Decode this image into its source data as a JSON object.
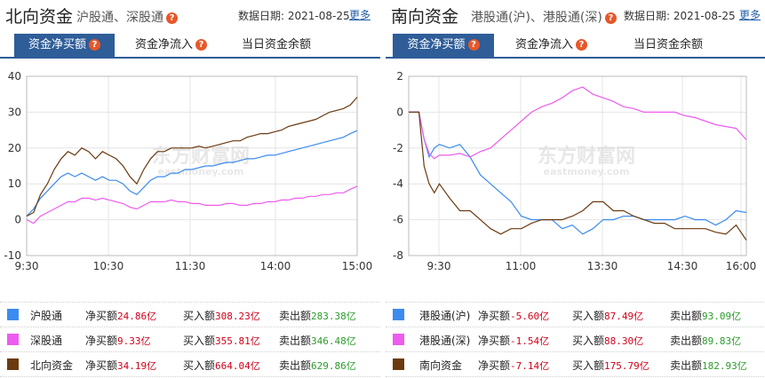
{
  "north": {
    "title": "北向资金",
    "subtitle": "沪股通、深股通",
    "date_label": "数据日期:",
    "date": "2021-08-25",
    "more": "更多",
    "tabs": [
      {
        "label": "资金净买额",
        "active": true,
        "help": true
      },
      {
        "label": "资金净流入",
        "active": false,
        "help": true
      },
      {
        "label": "当日资金余额",
        "active": false,
        "help": false
      }
    ],
    "watermark": "东方财富网",
    "watermark_sub": "eastmoney.com",
    "legend": [
      {
        "name": "沪股通",
        "color": "#3b8bf0",
        "net_label": "净买额",
        "net": "24.86亿",
        "buy_label": "买入额",
        "buy": "308.23亿",
        "sell_label": "卖出额",
        "sell": "283.38亿"
      },
      {
        "name": "深股通",
        "color": "#ee5bee",
        "net_label": "净买额",
        "net": "9.33亿",
        "buy_label": "买入额",
        "buy": "355.81亿",
        "sell_label": "卖出额",
        "sell": "346.48亿"
      },
      {
        "name": "北向资金",
        "color": "#6b3a10",
        "net_label": "净买额",
        "net": "34.19亿",
        "buy_label": "买入额",
        "buy": "664.04亿",
        "sell_label": "卖出额",
        "sell": "629.86亿"
      }
    ]
  },
  "south": {
    "title": "南向资金",
    "subtitle": "港股通(沪)、港股通(深)",
    "date_label": "数据日期:",
    "date": "2021-08-25",
    "more": "更多",
    "tabs": [
      {
        "label": "资金净买额",
        "active": true,
        "help": true
      },
      {
        "label": "资金净流入",
        "active": false,
        "help": true
      },
      {
        "label": "当日资金余额",
        "active": false,
        "help": false
      }
    ],
    "watermark": "东方财富网",
    "watermark_sub": "eastmoney.com",
    "legend": [
      {
        "name": "港股通(沪)",
        "color": "#3b8bf0",
        "net_label": "净买额",
        "net": "-5.60亿",
        "buy_label": "买入额",
        "buy": "87.49亿",
        "sell_label": "卖出额",
        "sell": "93.09亿"
      },
      {
        "name": "港股通(深)",
        "color": "#ee5bee",
        "net_label": "净买额",
        "net": "-1.54亿",
        "buy_label": "买入额",
        "buy": "88.30亿",
        "sell_label": "卖出额",
        "sell": "89.83亿"
      },
      {
        "name": "南向资金",
        "color": "#6b3a10",
        "net_label": "净买额",
        "net": "-7.14亿",
        "buy_label": "买入额",
        "buy": "175.79亿",
        "sell_label": "卖出额",
        "sell": "182.93亿"
      }
    ]
  },
  "chart_data": [
    {
      "type": "line",
      "title": "",
      "xlabel": "",
      "ylabel": "",
      "x_ticks": [
        "9:30",
        "10:30",
        "11:30",
        "14:00",
        "15:00"
      ],
      "x_range": [
        0,
        240
      ],
      "ylim": [
        -10,
        40
      ],
      "y_ticks": [
        -10,
        0,
        10,
        20,
        30,
        40
      ],
      "grid": true,
      "series": [
        {
          "name": "沪股通",
          "color": "#3b8bf0",
          "x": [
            0,
            5,
            10,
            15,
            20,
            25,
            30,
            35,
            40,
            45,
            50,
            55,
            60,
            65,
            70,
            75,
            80,
            85,
            90,
            95,
            100,
            105,
            110,
            115,
            120,
            125,
            130,
            135,
            140,
            145,
            150,
            155,
            160,
            165,
            170,
            175,
            180,
            185,
            190,
            195,
            200,
            205,
            210,
            215,
            220,
            225,
            230,
            235,
            240
          ],
          "y": [
            1,
            3,
            6,
            8,
            10,
            12,
            13,
            12,
            13,
            12,
            11,
            12,
            11,
            11,
            10,
            8,
            7,
            9,
            11,
            12,
            12,
            13,
            13,
            14,
            14,
            14.5,
            15,
            15,
            15.5,
            16,
            16,
            16.5,
            17,
            17,
            17.5,
            18,
            18,
            18.5,
            19,
            19.5,
            20,
            20.5,
            21,
            21.5,
            22,
            22.5,
            23,
            24,
            24.86
          ]
        },
        {
          "name": "深股通",
          "color": "#ee5bee",
          "x": [
            0,
            5,
            10,
            15,
            20,
            25,
            30,
            35,
            40,
            45,
            50,
            55,
            60,
            65,
            70,
            75,
            80,
            85,
            90,
            95,
            100,
            105,
            110,
            115,
            120,
            125,
            130,
            135,
            140,
            145,
            150,
            155,
            160,
            165,
            170,
            175,
            180,
            185,
            190,
            195,
            200,
            205,
            210,
            215,
            220,
            225,
            230,
            235,
            240
          ],
          "y": [
            0,
            -1,
            1,
            2,
            3,
            4,
            5,
            5,
            6,
            6,
            5.5,
            6,
            5.5,
            5,
            4.5,
            3.5,
            3,
            4,
            5,
            5,
            5,
            5.5,
            5,
            5,
            4.5,
            4.5,
            4,
            4,
            4,
            4.5,
            4.5,
            4,
            4,
            4.5,
            4.5,
            5,
            5,
            5.5,
            5.5,
            6,
            6,
            6.5,
            6.5,
            7,
            7,
            7.5,
            7.5,
            8.5,
            9.33
          ]
        },
        {
          "name": "北向资金",
          "color": "#6b3a10",
          "x": [
            0,
            5,
            10,
            15,
            20,
            25,
            30,
            35,
            40,
            45,
            50,
            55,
            60,
            65,
            70,
            75,
            80,
            85,
            90,
            95,
            100,
            105,
            110,
            115,
            120,
            125,
            130,
            135,
            140,
            145,
            150,
            155,
            160,
            165,
            170,
            175,
            180,
            185,
            190,
            195,
            200,
            205,
            210,
            215,
            220,
            225,
            230,
            235,
            240
          ],
          "y": [
            1,
            2,
            7,
            10,
            14,
            17,
            19,
            18,
            20,
            19,
            17,
            19,
            18,
            17,
            15,
            12,
            10,
            14,
            17,
            19,
            19,
            20,
            20,
            20,
            20,
            20.5,
            20,
            20.5,
            21,
            21.5,
            22,
            22,
            23,
            23.5,
            24,
            24,
            24.5,
            25,
            26,
            26.5,
            27,
            27.5,
            28,
            29,
            30,
            30.5,
            31,
            32,
            34.19
          ]
        }
      ]
    },
    {
      "type": "line",
      "title": "",
      "xlabel": "",
      "ylabel": "",
      "x_ticks": [
        "9:30",
        "11:00",
        "13:30",
        "14:30",
        "16:00"
      ],
      "x_range": [
        0,
        330
      ],
      "ylim": [
        -8,
        2
      ],
      "y_ticks": [
        -8,
        -6,
        -4,
        -2,
        0,
        2
      ],
      "grid": true,
      "series": [
        {
          "name": "港股通(沪)",
          "color": "#3b8bf0",
          "x": [
            0,
            10,
            15,
            20,
            25,
            30,
            40,
            50,
            60,
            70,
            80,
            90,
            100,
            110,
            120,
            130,
            140,
            150,
            160,
            170,
            180,
            190,
            200,
            210,
            220,
            230,
            240,
            250,
            260,
            270,
            280,
            290,
            300,
            310,
            320,
            330
          ],
          "y": [
            0,
            0,
            -1.5,
            -2.5,
            -2,
            -1.8,
            -2,
            -1.8,
            -2.5,
            -3.5,
            -4,
            -4.5,
            -5,
            -5.8,
            -6,
            -6,
            -6,
            -6.5,
            -6.3,
            -6.8,
            -6.5,
            -6,
            -6,
            -5.8,
            -5.8,
            -6,
            -6,
            -6,
            -6,
            -5.8,
            -6,
            -6,
            -6.3,
            -6,
            -5.5,
            -5.6
          ]
        },
        {
          "name": "港股通(深)",
          "color": "#ee5bee",
          "x": [
            0,
            10,
            15,
            20,
            25,
            30,
            40,
            50,
            60,
            70,
            80,
            90,
            100,
            110,
            120,
            130,
            140,
            150,
            160,
            170,
            180,
            190,
            200,
            210,
            220,
            230,
            240,
            250,
            260,
            270,
            280,
            290,
            300,
            310,
            320,
            330
          ],
          "y": [
            0,
            0,
            -1.5,
            -2.3,
            -2.6,
            -2.4,
            -2.4,
            -2.3,
            -2.5,
            -2.2,
            -2,
            -1.5,
            -1,
            -0.5,
            0,
            0.3,
            0.5,
            0.8,
            1.2,
            1.4,
            1,
            0.8,
            0.6,
            0.3,
            0.2,
            0,
            0,
            0,
            0,
            -0.2,
            -0.3,
            -0.5,
            -0.7,
            -0.8,
            -0.9,
            -1.54
          ]
        },
        {
          "name": "南向资金",
          "color": "#6b3a10",
          "x": [
            0,
            10,
            15,
            20,
            25,
            30,
            40,
            50,
            60,
            70,
            80,
            90,
            100,
            110,
            120,
            130,
            140,
            150,
            160,
            170,
            180,
            190,
            200,
            210,
            220,
            230,
            240,
            250,
            260,
            270,
            280,
            290,
            300,
            310,
            320,
            330
          ],
          "y": [
            0,
            0,
            -3,
            -4,
            -4.5,
            -4,
            -4.8,
            -5.5,
            -5.5,
            -6,
            -6.5,
            -6.8,
            -6.5,
            -6.5,
            -6.2,
            -6,
            -6,
            -6,
            -5.8,
            -5.5,
            -5,
            -5,
            -5.5,
            -5.5,
            -5.8,
            -6,
            -6.2,
            -6.2,
            -6.5,
            -6.5,
            -6.5,
            -6.5,
            -6.7,
            -6.8,
            -6.3,
            -7.14
          ]
        }
      ]
    }
  ]
}
